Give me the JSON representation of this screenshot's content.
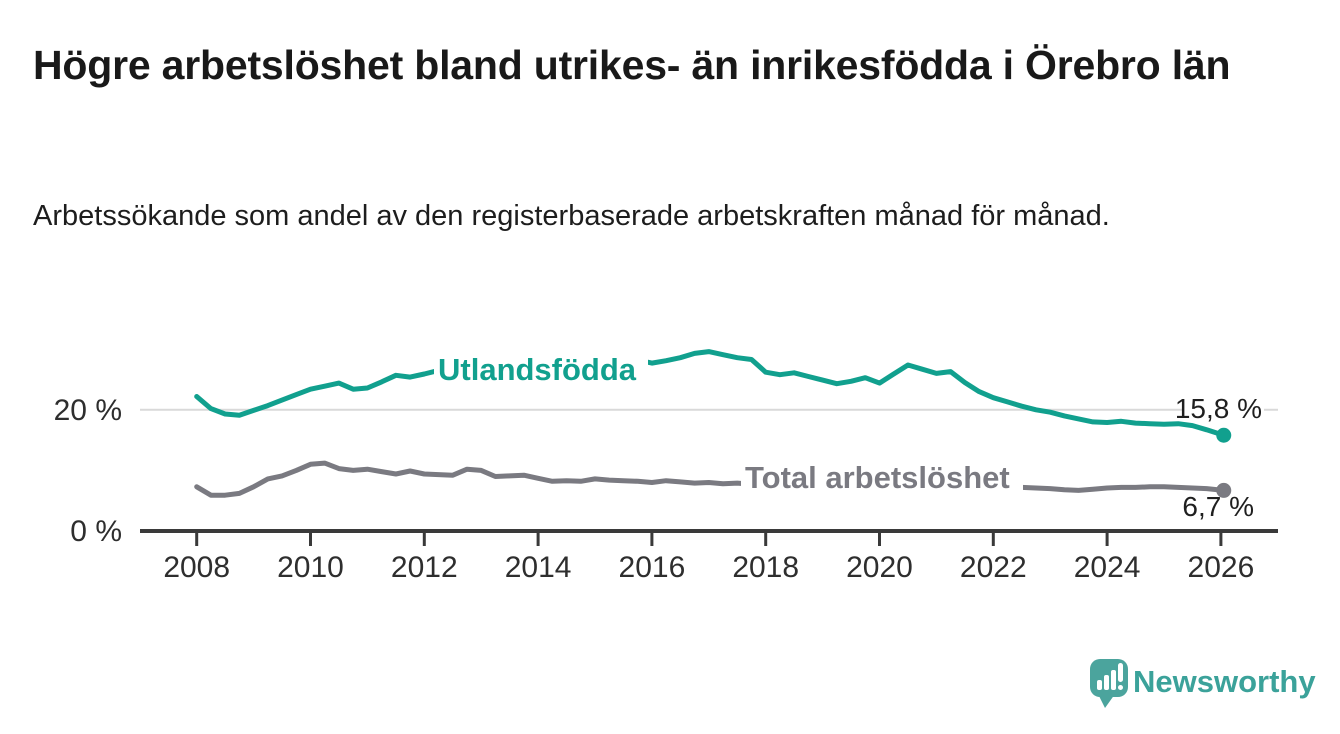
{
  "header": {
    "title": "Högre arbetslöshet bland utrikes- än inrikesfödda i Örebro län",
    "subtitle": "Arbetssökande som andel av den registerbaserade arbetskraften månad för månad."
  },
  "footer": {
    "brand": "Newsworthy",
    "logo_icon_name": "bar-chart-speech-bubble-icon"
  },
  "colors": {
    "foreign_born_line": "#11a08e",
    "total_line": "#7a7a81",
    "axis": "#3a3a3a",
    "gridline": "#d9d9d9",
    "tick_text": "#2e2e2e",
    "value_text": "#1f1f1f",
    "brand_teal": "#3ba29a",
    "logo_bubble": "#4ba49d"
  },
  "chart_data": {
    "type": "line",
    "title": "Högre arbetslöshet bland utrikes- än inrikesfödda i Örebro län",
    "subtitle": "Arbetssökande som andel av den registerbaserade arbetskraften månad för månad.",
    "unit": "%",
    "x_axis": {
      "ticks": [
        2008,
        2010,
        2012,
        2014,
        2016,
        2018,
        2020,
        2022,
        2024,
        2026
      ],
      "tick_labels": [
        "2008",
        "2010",
        "2012",
        "2014",
        "2016",
        "2018",
        "2020",
        "2022",
        "2024",
        "2026"
      ]
    },
    "y_axis": {
      "ticks": [
        0,
        20
      ],
      "tick_labels": [
        "0 %",
        "20 %"
      ],
      "range": [
        0,
        33
      ],
      "gridlines_at": [
        20
      ]
    },
    "legend_position": "inline-labels-on-lines",
    "x": [
      2008,
      2008.25,
      2008.5,
      2008.75,
      2009,
      2009.25,
      2009.5,
      2009.75,
      2010,
      2010.25,
      2010.5,
      2010.75,
      2011,
      2011.25,
      2011.5,
      2011.75,
      2012,
      2012.25,
      2012.5,
      2012.75,
      2013,
      2013.25,
      2013.5,
      2013.75,
      2014,
      2014.25,
      2014.5,
      2014.75,
      2015,
      2015.25,
      2015.5,
      2015.75,
      2016,
      2016.25,
      2016.5,
      2016.75,
      2017,
      2017.25,
      2017.5,
      2017.75,
      2018,
      2018.25,
      2018.5,
      2018.75,
      2019,
      2019.25,
      2019.5,
      2019.75,
      2020,
      2020.25,
      2020.5,
      2020.75,
      2021,
      2021.25,
      2021.5,
      2021.75,
      2022,
      2022.25,
      2022.5,
      2022.75,
      2023,
      2023.25,
      2023.5,
      2023.75,
      2024,
      2024.25,
      2024.5,
      2024.75,
      2025,
      2025.25,
      2025.5,
      2025.75,
      2026.05
    ],
    "series": [
      {
        "name": "Utlandsfödda",
        "color": "#11a08e",
        "end_value": 15.8,
        "end_label": "15,8 %",
        "values": [
          22.2,
          20.2,
          19.3,
          19.1,
          19.9,
          20.7,
          21.6,
          22.5,
          23.4,
          23.9,
          24.4,
          23.4,
          23.6,
          24.6,
          25.7,
          25.4,
          25.9,
          26.5,
          25.9,
          26.2,
          26.6,
          26.3,
          26.5,
          26.7,
          26.5,
          26.8,
          26.7,
          26.9,
          26.8,
          27.1,
          27.4,
          28.2,
          27.7,
          28.1,
          28.6,
          29.3,
          29.6,
          29.1,
          28.6,
          28.3,
          26.2,
          25.8,
          26.1,
          25.5,
          24.9,
          24.3,
          24.7,
          25.3,
          24.4,
          25.9,
          27.4,
          26.7,
          26.0,
          26.3,
          24.5,
          23.0,
          22.0,
          21.3,
          20.6,
          20.0,
          19.6,
          19.0,
          18.5,
          18.0,
          17.9,
          18.1,
          17.8,
          17.7,
          17.6,
          17.7,
          17.4,
          16.7,
          15.8
        ]
      },
      {
        "name": "Total arbetslöshet",
        "color": "#7a7a81",
        "end_value": 6.7,
        "end_label": "6,7 %",
        "values": [
          7.3,
          5.9,
          5.9,
          6.2,
          7.3,
          8.6,
          9.1,
          10.0,
          11.0,
          11.2,
          10.3,
          10.0,
          10.2,
          9.8,
          9.4,
          9.9,
          9.4,
          9.3,
          9.2,
          10.2,
          10.0,
          9.0,
          9.1,
          9.2,
          8.7,
          8.2,
          8.3,
          8.2,
          8.6,
          8.4,
          8.3,
          8.2,
          8.0,
          8.3,
          8.1,
          7.9,
          8.0,
          7.8,
          7.9,
          7.7,
          7.5,
          7.4,
          7.3,
          7.2,
          7.2,
          7.1,
          7.2,
          7.3,
          7.6,
          8.6,
          9.2,
          8.9,
          8.6,
          8.3,
          7.9,
          7.5,
          7.3,
          7.2,
          7.2,
          7.1,
          7.0,
          6.8,
          6.7,
          6.9,
          7.1,
          7.2,
          7.2,
          7.3,
          7.3,
          7.2,
          7.1,
          7.0,
          6.7
        ]
      }
    ]
  }
}
